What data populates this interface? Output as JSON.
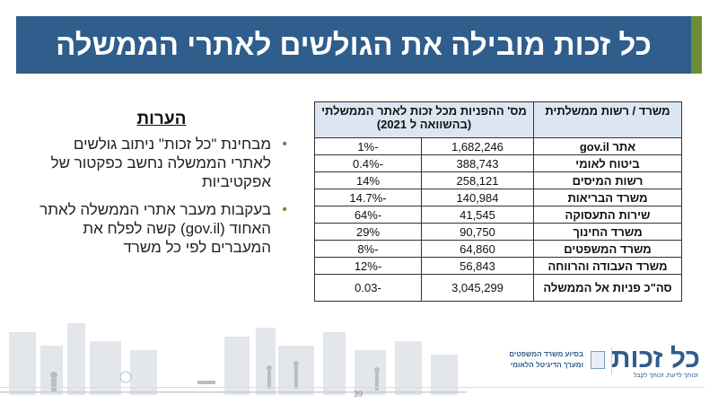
{
  "title": "כל זכות מובילה את הגולשים לאתרי הממשלה",
  "colors": {
    "title_bar": "#2f5d8c",
    "accent_strip": "#6b8e3a",
    "bullet": "#6b8e3a",
    "table_header": "#dce6f2"
  },
  "notes": {
    "heading": "הערות",
    "items": [
      "מבחינת \"כל זכות\" ניתוב גולשים לאתרי הממשלה נחשב כפקטור של אפקטיביות",
      "בעקבות מעבר אתרי הממשלה לאתר האחוד (gov.il) קשה לפלח את המעברים לפי כל משרד"
    ]
  },
  "table": {
    "headers": [
      "משרד / רשות ממשלתית",
      "מס' ההפניות מכל זכות לאתר הממשלתי (בהשוואה ל 2021)"
    ],
    "rows": [
      {
        "name": "אתר gov.il",
        "count": "1,682,246",
        "change": "-1%"
      },
      {
        "name": "ביטוח לאומי",
        "count": "388,743",
        "change": "-0.4%"
      },
      {
        "name": "רשות המיסים",
        "count": "258,121",
        "change": "14%"
      },
      {
        "name": "משרד הבריאות",
        "count": "140,984",
        "change": "-14.7%"
      },
      {
        "name": "שירות התעסוקה",
        "count": "41,545",
        "change": "-64%"
      },
      {
        "name": "משרד החינוך",
        "count": "90,750",
        "change": "29%"
      },
      {
        "name": "משרד המשפטים",
        "count": "64,860",
        "change": "-8%"
      },
      {
        "name": "משרד העבודה והרווחה",
        "count": "56,843",
        "change": "-12%"
      },
      {
        "name": "סה\"כ פניות אל הממשלה",
        "count": "3,045,299",
        "change": "-0.03"
      }
    ]
  },
  "footer": {
    "logo": "כל זכות",
    "tagline": "זכותך לדעת, זכותך לקבל",
    "ministry_line1": "בסיוע משרד המשפטים",
    "ministry_line2": "ומערך הדיגיטל הלאומי",
    "page_number": "39"
  }
}
